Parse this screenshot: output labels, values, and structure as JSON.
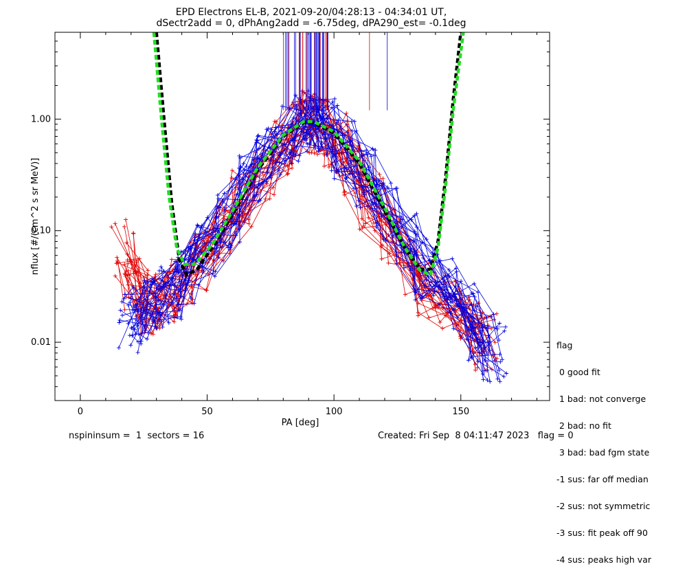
{
  "title_line1": "EPD Electrons EL-B, 2021-09-20/04:28:13 - 04:34:01 UT,",
  "title_line2": "dSectr2add = 0, dPhAng2add = -6.75deg, dPA290_est=  -0.1deg",
  "footer": {
    "left": "nspininsum =  1  sectors = 16",
    "right": "Created: Fri Sep  8 04:11:47 2023   flag = 0"
  },
  "flag_legend": {
    "title": "flag",
    "items": [
      " 0 good fit",
      " 1 bad: not converge",
      " 2 bad: no fit",
      " 3 bad: bad fgm state",
      "-1 sus: far off median",
      "-2 sus: not symmetric",
      "-3 sus: fit peak off 90",
      "-4 sus: peaks high var"
    ]
  },
  "colors": {
    "red": "#e00000",
    "blue": "#0000e0",
    "fit_black": "#000000",
    "fit_green": "#22dd22"
  },
  "chart_data": {
    "type": "line",
    "xlabel": "PA [deg]",
    "ylabel": "nflux [#/(cm^2 s sr MeV)]",
    "xlim": [
      -10,
      185
    ],
    "ylim": [
      0.003,
      6.0
    ],
    "yscale": "log",
    "xticks": [
      0,
      50,
      100,
      150
    ],
    "yticks": [
      0.01,
      0.1,
      1.0
    ],
    "ytick_labels": [
      "0.01",
      "0.10",
      "1.00"
    ],
    "series": [
      {
        "color": "red",
        "values_note": "",
        "x": [
          17,
          22,
          27,
          33,
          40,
          48,
          56,
          64,
          72,
          80,
          86,
          90,
          95,
          101,
          108,
          115,
          122,
          130,
          138,
          146,
          154,
          160
        ],
        "y": [
          0.07,
          0.03,
          0.02,
          0.025,
          0.03,
          0.05,
          0.1,
          0.2,
          0.35,
          0.6,
          0.85,
          0.95,
          0.9,
          0.6,
          0.35,
          0.17,
          0.09,
          0.05,
          0.03,
          0.02,
          0.015,
          0.01
        ]
      },
      {
        "color": "blue",
        "x": [
          20,
          25,
          30,
          36,
          42,
          50,
          58,
          66,
          74,
          82,
          88,
          92,
          97,
          104,
          112,
          120,
          128,
          136,
          144,
          152,
          158,
          163
        ],
        "y": [
          0.015,
          0.02,
          0.025,
          0.03,
          0.04,
          0.07,
          0.13,
          0.25,
          0.45,
          0.75,
          0.95,
          1.0,
          0.85,
          0.55,
          0.3,
          0.15,
          0.08,
          0.045,
          0.03,
          0.02,
          0.012,
          0.008
        ]
      }
    ],
    "fits": [
      {
        "color": "fit_black",
        "x": [
          30,
          33,
          36,
          39,
          42,
          46,
          52,
          60,
          70,
          80,
          88,
          92,
          100,
          110,
          120,
          128,
          134,
          138,
          141,
          144,
          147,
          150
        ],
        "y": [
          6.0,
          1.0,
          0.18,
          0.055,
          0.04,
          0.045,
          0.07,
          0.14,
          0.35,
          0.7,
          0.93,
          0.93,
          0.75,
          0.4,
          0.15,
          0.07,
          0.045,
          0.045,
          0.08,
          0.3,
          1.5,
          6.0
        ]
      },
      {
        "color": "fit_green",
        "x": [
          29,
          32,
          35,
          38,
          41,
          45,
          52,
          60,
          70,
          80,
          88,
          92,
          100,
          110,
          120,
          128,
          134,
          138,
          141,
          144,
          147,
          151
        ],
        "y": [
          6.0,
          1.0,
          0.2,
          0.07,
          0.05,
          0.05,
          0.075,
          0.15,
          0.37,
          0.72,
          0.95,
          0.95,
          0.77,
          0.42,
          0.16,
          0.07,
          0.044,
          0.04,
          0.07,
          0.25,
          1.2,
          6.0
        ]
      }
    ]
  }
}
